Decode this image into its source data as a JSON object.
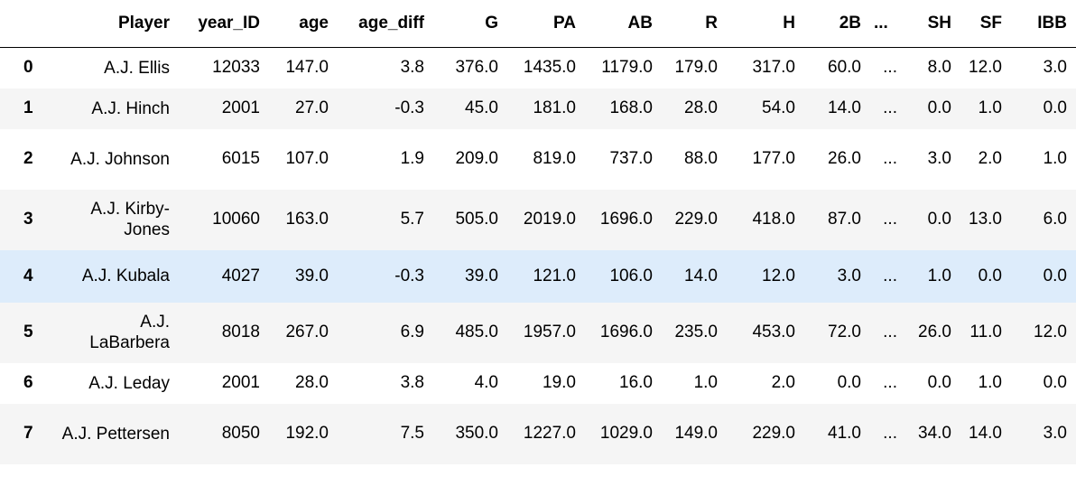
{
  "columns": [
    "Player",
    "year_ID",
    "age",
    "age_diff",
    "G",
    "PA",
    "AB",
    "R",
    "H",
    "2B",
    "...",
    "SH",
    "SF",
    "IBB"
  ],
  "rows": [
    {
      "index": "0",
      "cells": [
        "A.J. Ellis",
        "12033",
        "147.0",
        "3.8",
        "376.0",
        "1435.0",
        "1179.0",
        "179.0",
        "317.0",
        "60.0",
        "...",
        "8.0",
        "12.0",
        "3.0"
      ]
    },
    {
      "index": "1",
      "cells": [
        "A.J. Hinch",
        "2001",
        "27.0",
        "-0.3",
        "45.0",
        "181.0",
        "168.0",
        "28.0",
        "54.0",
        "14.0",
        "...",
        "0.0",
        "1.0",
        "0.0"
      ]
    },
    {
      "index": "2",
      "cells": [
        "A.J. Johnson",
        "6015",
        "107.0",
        "1.9",
        "209.0",
        "819.0",
        "737.0",
        "88.0",
        "177.0",
        "26.0",
        "...",
        "3.0",
        "2.0",
        "1.0"
      ]
    },
    {
      "index": "3",
      "cells": [
        "A.J. Kirby-Jones",
        "10060",
        "163.0",
        "5.7",
        "505.0",
        "2019.0",
        "1696.0",
        "229.0",
        "418.0",
        "87.0",
        "...",
        "0.0",
        "13.0",
        "6.0"
      ]
    },
    {
      "index": "4",
      "cells": [
        "A.J. Kubala",
        "4027",
        "39.0",
        "-0.3",
        "39.0",
        "121.0",
        "106.0",
        "14.0",
        "12.0",
        "3.0",
        "...",
        "1.0",
        "0.0",
        "0.0"
      ]
    },
    {
      "index": "5",
      "cells": [
        "A.J. LaBarbera",
        "8018",
        "267.0",
        "6.9",
        "485.0",
        "1957.0",
        "1696.0",
        "235.0",
        "453.0",
        "72.0",
        "...",
        "26.0",
        "11.0",
        "12.0"
      ]
    },
    {
      "index": "6",
      "cells": [
        "A.J. Leday",
        "2001",
        "28.0",
        "3.8",
        "4.0",
        "19.0",
        "16.0",
        "1.0",
        "2.0",
        "0.0",
        "...",
        "0.0",
        "1.0",
        "0.0"
      ]
    },
    {
      "index": "7",
      "cells": [
        "A.J. Pettersen",
        "8050",
        "192.0",
        "7.5",
        "350.0",
        "1227.0",
        "1029.0",
        "149.0",
        "229.0",
        "41.0",
        "...",
        "34.0",
        "14.0",
        "3.0"
      ]
    }
  ]
}
